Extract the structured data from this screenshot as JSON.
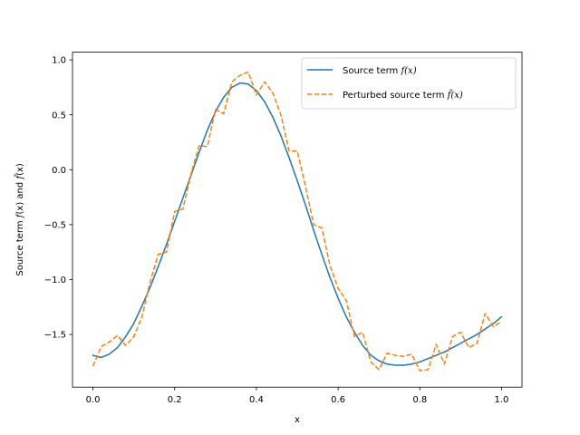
{
  "chart_data": {
    "type": "line",
    "title": "",
    "xlabel": "x",
    "ylabel": {
      "prefix": "Source term ",
      "f1": "f",
      "arg1": "(x)",
      "conj": " and ",
      "f2": "f̃",
      "arg2": "(x)"
    },
    "xlim": [
      -0.05,
      1.05
    ],
    "ylim": [
      -1.98,
      1.07
    ],
    "xticks": [
      0.0,
      0.2,
      0.4,
      0.6,
      0.8,
      1.0
    ],
    "xtick_labels": [
      "0.0",
      "0.2",
      "0.4",
      "0.6",
      "0.8",
      "1.0"
    ],
    "yticks": [
      1.0,
      0.5,
      0.0,
      -0.5,
      -1.0,
      -1.5
    ],
    "ytick_labels": [
      "1.0",
      "0.5",
      "0.0",
      "−0.5",
      "−1.0",
      "−1.5"
    ],
    "grid": false,
    "legend_placement": "upper-right",
    "series": [
      {
        "name": "Source term f(x)",
        "legend_prefix": "Source term ",
        "legend_math": "f(x)",
        "color": "#1f77b4",
        "style": "solid",
        "x": [
          0.0,
          0.02,
          0.04,
          0.06,
          0.08,
          0.1,
          0.12,
          0.14,
          0.16,
          0.18,
          0.2,
          0.22,
          0.24,
          0.26,
          0.28,
          0.3,
          0.32,
          0.34,
          0.36,
          0.38,
          0.4,
          0.42,
          0.44,
          0.46,
          0.48,
          0.5,
          0.52,
          0.54,
          0.56,
          0.58,
          0.6,
          0.62,
          0.64,
          0.66,
          0.68,
          0.7,
          0.72,
          0.74,
          0.76,
          0.78,
          0.8,
          0.82,
          0.84,
          0.86,
          0.88,
          0.9,
          0.92,
          0.94,
          0.96,
          0.98,
          1.0
        ],
        "y": [
          -1.69,
          -1.71,
          -1.68,
          -1.62,
          -1.52,
          -1.4,
          -1.24,
          -1.07,
          -0.88,
          -0.68,
          -0.47,
          -0.26,
          -0.05,
          0.16,
          0.36,
          0.53,
          0.66,
          0.75,
          0.79,
          0.78,
          0.72,
          0.62,
          0.48,
          0.31,
          0.11,
          -0.1,
          -0.32,
          -0.55,
          -0.77,
          -0.98,
          -1.17,
          -1.34,
          -1.48,
          -1.6,
          -1.69,
          -1.74,
          -1.77,
          -1.78,
          -1.78,
          -1.77,
          -1.75,
          -1.72,
          -1.69,
          -1.66,
          -1.62,
          -1.58,
          -1.54,
          -1.5,
          -1.45,
          -1.4,
          -1.34
        ]
      },
      {
        "name": "Perturbed source term f̃(x)",
        "legend_prefix": "Perturbed source term ",
        "legend_math": "f̃(x)",
        "color": "#ff7f0e",
        "style": "dashed",
        "x": [
          0.0,
          0.02,
          0.04,
          0.06,
          0.08,
          0.1,
          0.12,
          0.14,
          0.16,
          0.18,
          0.2,
          0.22,
          0.24,
          0.26,
          0.28,
          0.3,
          0.32,
          0.34,
          0.36,
          0.38,
          0.4,
          0.42,
          0.44,
          0.46,
          0.48,
          0.5,
          0.52,
          0.54,
          0.56,
          0.58,
          0.6,
          0.62,
          0.64,
          0.66,
          0.68,
          0.7,
          0.72,
          0.74,
          0.76,
          0.78,
          0.8,
          0.82,
          0.84,
          0.86,
          0.88,
          0.9,
          0.92,
          0.94,
          0.96,
          0.98,
          1.0
        ],
        "y": [
          -1.79,
          -1.61,
          -1.57,
          -1.51,
          -1.6,
          -1.52,
          -1.34,
          -1.02,
          -0.77,
          -0.75,
          -0.38,
          -0.36,
          -0.04,
          0.22,
          0.21,
          0.55,
          0.51,
          0.8,
          0.86,
          0.89,
          0.68,
          0.8,
          0.7,
          0.5,
          0.17,
          0.17,
          -0.15,
          -0.5,
          -0.53,
          -0.87,
          -1.08,
          -1.19,
          -1.52,
          -1.48,
          -1.75,
          -1.82,
          -1.67,
          -1.69,
          -1.7,
          -1.68,
          -1.83,
          -1.82,
          -1.59,
          -1.77,
          -1.52,
          -1.48,
          -1.62,
          -1.58,
          -1.31,
          -1.43,
          -1.38
        ]
      }
    ]
  }
}
